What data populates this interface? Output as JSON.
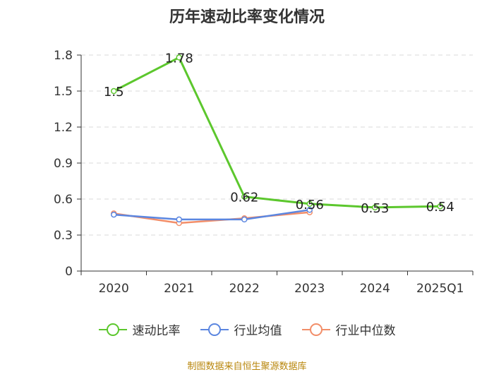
{
  "chart_data": {
    "type": "line",
    "title": "历年速动比率变化情况",
    "categories": [
      "2020",
      "2021",
      "2022",
      "2023",
      "2024",
      "2025Q1"
    ],
    "ylim": [
      0,
      1.8
    ],
    "yticks": [
      "0",
      "0.3",
      "0.6",
      "0.9",
      "1.2",
      "1.5",
      "1.8"
    ],
    "grid": true,
    "legend_position": "bottom",
    "series": [
      {
        "name": "速动比率",
        "color": "#5cc72d",
        "values": [
          1.5,
          1.78,
          0.62,
          0.56,
          0.53,
          0.54
        ],
        "labels": [
          "1.5",
          "1.78",
          "0.62",
          "0.56",
          "0.53",
          "0.54"
        ]
      },
      {
        "name": "行业均值",
        "color": "#5b86e0",
        "values": [
          0.47,
          0.43,
          0.43,
          0.51,
          null,
          null
        ]
      },
      {
        "name": "行业中位数",
        "color": "#f28e69",
        "values": [
          0.48,
          0.4,
          0.44,
          0.49,
          null,
          null
        ]
      }
    ]
  },
  "source": "制图数据来自恒生聚源数据库"
}
